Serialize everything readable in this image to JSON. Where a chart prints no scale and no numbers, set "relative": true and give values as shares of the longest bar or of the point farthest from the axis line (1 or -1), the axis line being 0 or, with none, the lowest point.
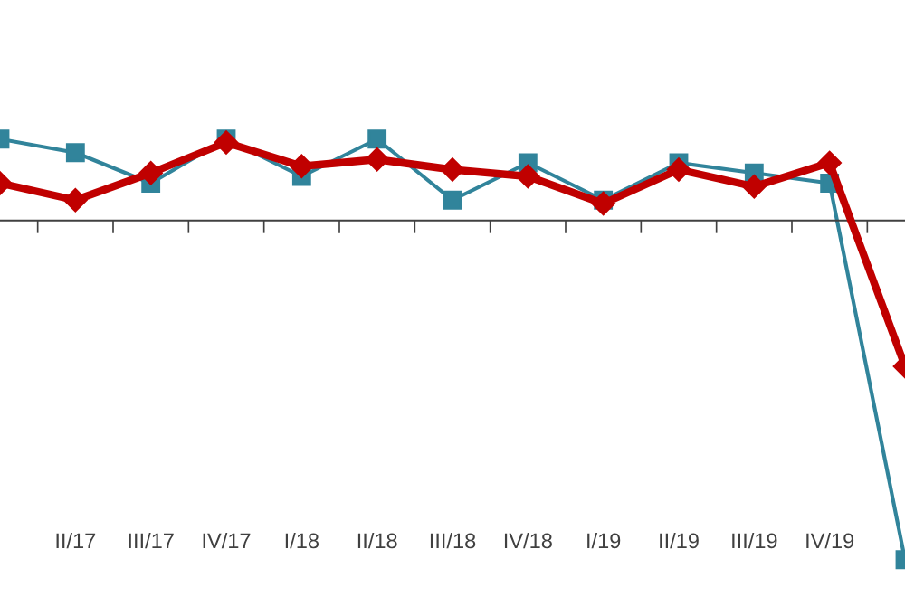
{
  "chart_data": {
    "type": "line",
    "relative": true,
    "categories": [
      null,
      "II/17",
      "III/17",
      "IV/17",
      "I/18",
      "II/18",
      "III/18",
      "IV/18",
      "I/19",
      "II/19",
      "III/19",
      "IV/19",
      null
    ],
    "series": [
      {
        "color": "#31849b",
        "marker": "square",
        "values": [
          0.24,
          0.2,
          0.11,
          0.24,
          0.13,
          0.24,
          0.06,
          0.17,
          0.06,
          0.17,
          0.14,
          0.11,
          -1
        ]
      },
      {
        "color": "#c00000",
        "marker": "diamond",
        "values": [
          0.11,
          0.06,
          0.14,
          0.23,
          0.16,
          0.18,
          0.15,
          0.13,
          0.05,
          0.15,
          0.1,
          0.17,
          -0.43
        ]
      }
    ],
    "grid": false,
    "legend": false
  }
}
